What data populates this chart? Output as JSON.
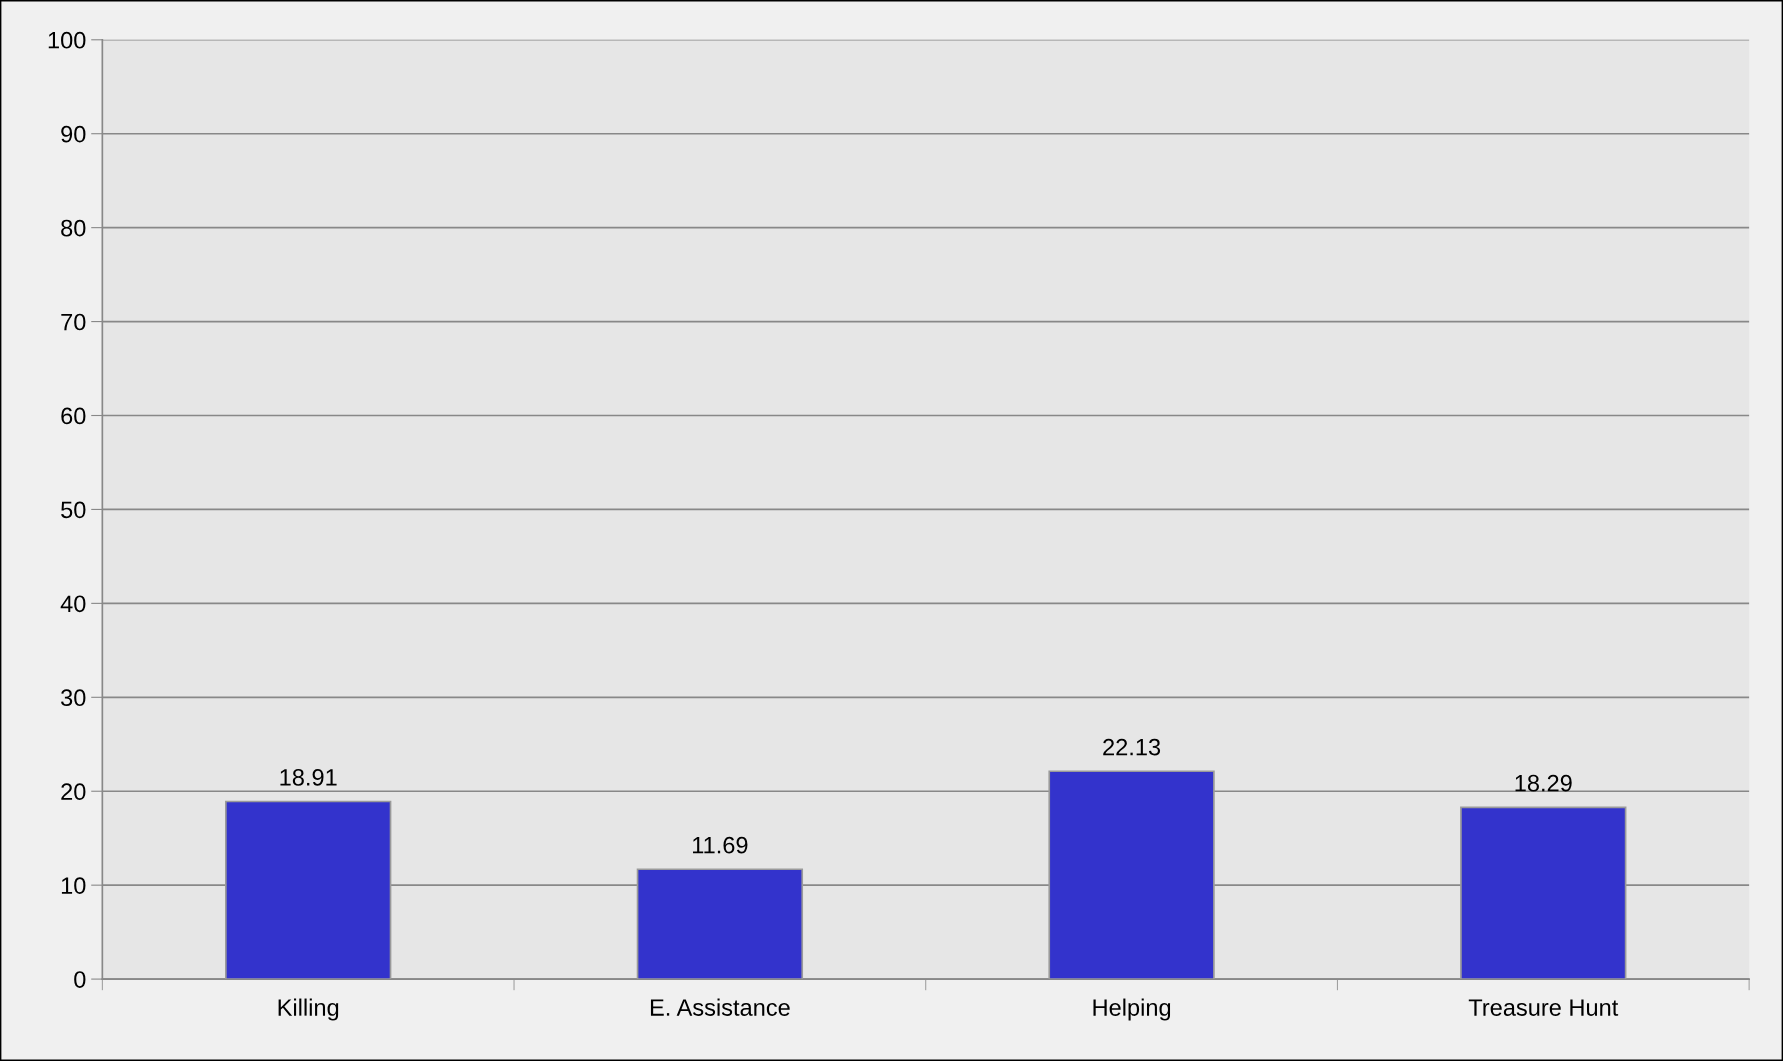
{
  "chart_data": {
    "type": "bar",
    "categories": [
      "Killing",
      "E. Assistance",
      "Helping",
      "Treasure Hunt"
    ],
    "values": [
      18.91,
      11.69,
      22.13,
      18.29
    ],
    "color": "#3333cc",
    "ylim": [
      0,
      100
    ],
    "yticks": [
      0,
      10,
      20,
      30,
      40,
      50,
      60,
      70,
      80,
      90,
      100
    ],
    "grid": "y",
    "data_labels": true
  }
}
